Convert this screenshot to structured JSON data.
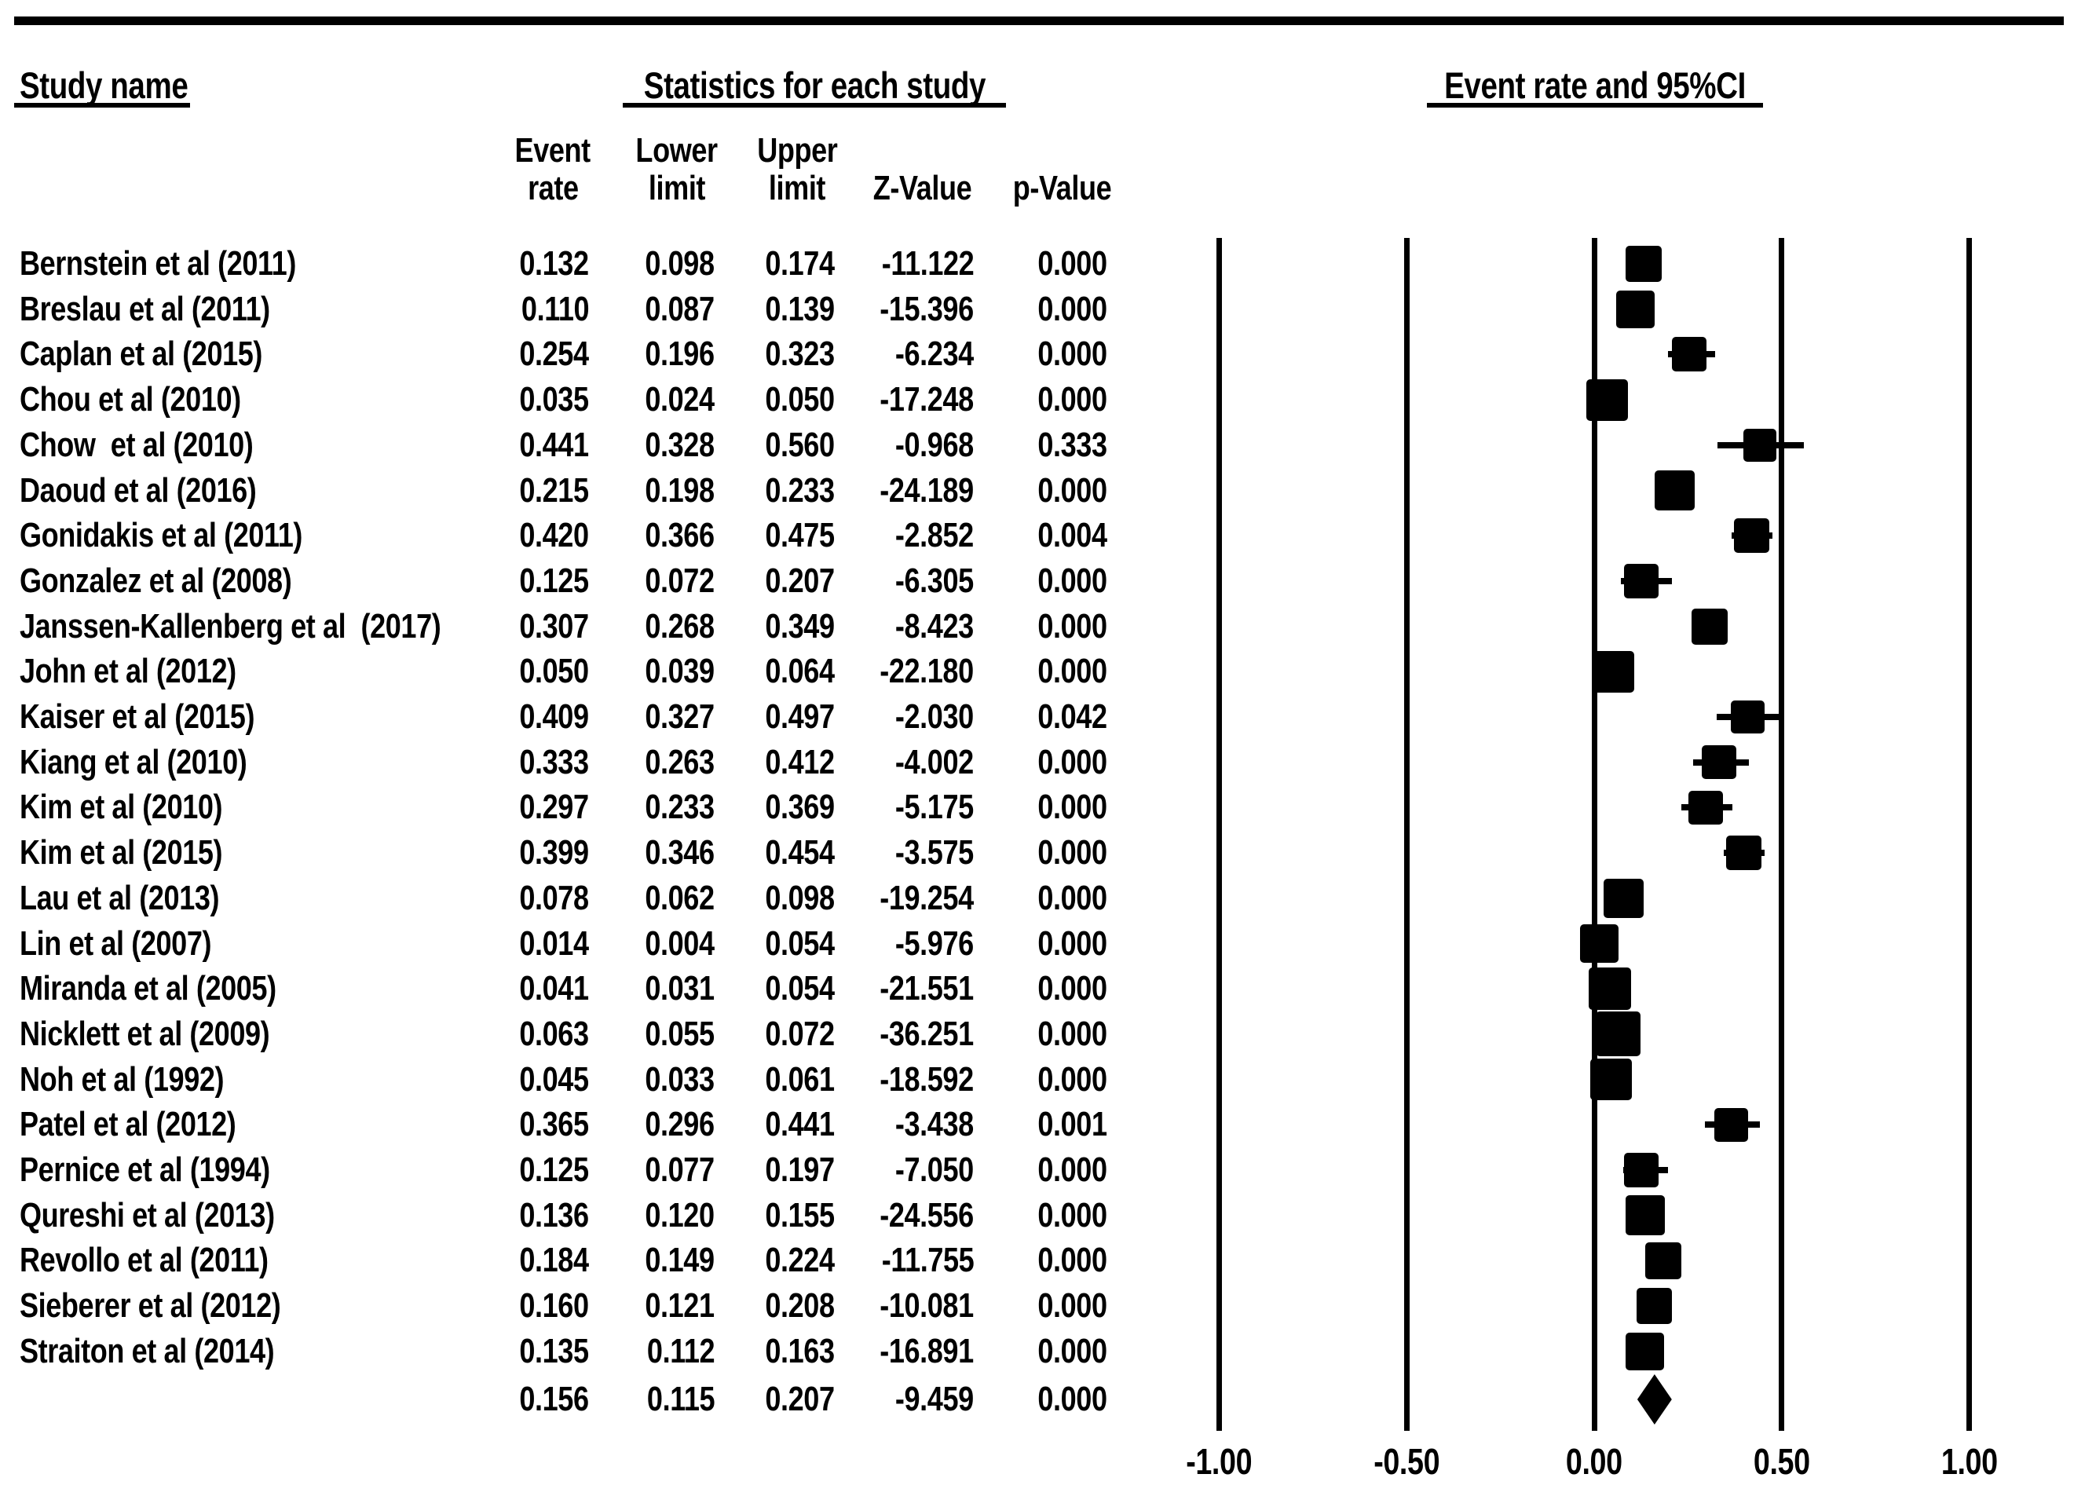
{
  "page": {
    "background": "#ffffff",
    "ink": "#000000"
  },
  "header": {
    "study_col_title": "Study name",
    "stats_title": "Statistics for each study",
    "plot_title": "Event rate and 95%CI",
    "stat_columns": [
      {
        "line1": "Event",
        "line2": "rate"
      },
      {
        "line1": "Lower",
        "line2": "limit"
      },
      {
        "line1": "Upper",
        "line2": "limit"
      },
      {
        "line1": "",
        "line2": "Z-Value"
      },
      {
        "line1": "",
        "line2": "p-Value"
      }
    ]
  },
  "chart_data": {
    "type": "forest",
    "title": "Event rate and 95%CI",
    "columns": [
      "Event rate",
      "Lower limit",
      "Upper limit",
      "Z-Value",
      "p-Value"
    ],
    "x_axis": {
      "tick_labels": [
        "-1.00",
        "-0.50",
        "0.00",
        "0.50",
        "1.00"
      ],
      "tick_values": [
        -1.0,
        -0.5,
        0.0,
        0.5,
        1.0
      ],
      "xlim": [
        -1.0,
        1.0
      ],
      "grid": "vertical-lines"
    },
    "marker": "filled-square",
    "summary_marker": "filled-diamond",
    "studies": [
      {
        "name": "Bernstein et al (2011)",
        "event_rate": "0.132",
        "lower": "0.098",
        "upper": "0.174",
        "z": "-11.122",
        "p": "0.000"
      },
      {
        "name": "Breslau et al (2011)",
        "event_rate": "0.110",
        "lower": "0.087",
        "upper": "0.139",
        "z": "-15.396",
        "p": "0.000"
      },
      {
        "name": "Caplan et al (2015)",
        "event_rate": "0.254",
        "lower": "0.196",
        "upper": "0.323",
        "z": "-6.234",
        "p": "0.000"
      },
      {
        "name": "Chou et al (2010)",
        "event_rate": "0.035",
        "lower": "0.024",
        "upper": "0.050",
        "z": "-17.248",
        "p": "0.000"
      },
      {
        "name": "Chow  et al (2010)",
        "event_rate": "0.441",
        "lower": "0.328",
        "upper": "0.560",
        "z": "-0.968",
        "p": "0.333"
      },
      {
        "name": "Daoud et al (2016)",
        "event_rate": "0.215",
        "lower": "0.198",
        "upper": "0.233",
        "z": "-24.189",
        "p": "0.000"
      },
      {
        "name": "Gonidakis et al (2011)",
        "event_rate": "0.420",
        "lower": "0.366",
        "upper": "0.475",
        "z": "-2.852",
        "p": "0.004"
      },
      {
        "name": "Gonzalez et al (2008)",
        "event_rate": "0.125",
        "lower": "0.072",
        "upper": "0.207",
        "z": "-6.305",
        "p": "0.000"
      },
      {
        "name": "Janssen-Kallenberg et al  (2017)",
        "event_rate": "0.307",
        "lower": "0.268",
        "upper": "0.349",
        "z": "-8.423",
        "p": "0.000"
      },
      {
        "name": "John et al (2012)",
        "event_rate": "0.050",
        "lower": "0.039",
        "upper": "0.064",
        "z": "-22.180",
        "p": "0.000"
      },
      {
        "name": "Kaiser et al (2015)",
        "event_rate": "0.409",
        "lower": "0.327",
        "upper": "0.497",
        "z": "-2.030",
        "p": "0.042"
      },
      {
        "name": "Kiang et al (2010)",
        "event_rate": "0.333",
        "lower": "0.263",
        "upper": "0.412",
        "z": "-4.002",
        "p": "0.000"
      },
      {
        "name": "Kim et al (2010)",
        "event_rate": "0.297",
        "lower": "0.233",
        "upper": "0.369",
        "z": "-5.175",
        "p": "0.000"
      },
      {
        "name": "Kim et al (2015)",
        "event_rate": "0.399",
        "lower": "0.346",
        "upper": "0.454",
        "z": "-3.575",
        "p": "0.000"
      },
      {
        "name": "Lau et al (2013)",
        "event_rate": "0.078",
        "lower": "0.062",
        "upper": "0.098",
        "z": "-19.254",
        "p": "0.000"
      },
      {
        "name": "Lin et al (2007)",
        "event_rate": "0.014",
        "lower": "0.004",
        "upper": "0.054",
        "z": "-5.976",
        "p": "0.000"
      },
      {
        "name": "Miranda et al (2005)",
        "event_rate": "0.041",
        "lower": "0.031",
        "upper": "0.054",
        "z": "-21.551",
        "p": "0.000"
      },
      {
        "name": "Nicklett et al (2009)",
        "event_rate": "0.063",
        "lower": "0.055",
        "upper": "0.072",
        "z": "-36.251",
        "p": "0.000"
      },
      {
        "name": "Noh et al (1992)",
        "event_rate": "0.045",
        "lower": "0.033",
        "upper": "0.061",
        "z": "-18.592",
        "p": "0.000"
      },
      {
        "name": "Patel et al (2012)",
        "event_rate": "0.365",
        "lower": "0.296",
        "upper": "0.441",
        "z": "-3.438",
        "p": "0.001"
      },
      {
        "name": "Pernice et al (1994)",
        "event_rate": "0.125",
        "lower": "0.077",
        "upper": "0.197",
        "z": "-7.050",
        "p": "0.000"
      },
      {
        "name": "Qureshi et al (2013)",
        "event_rate": "0.136",
        "lower": "0.120",
        "upper": "0.155",
        "z": "-24.556",
        "p": "0.000"
      },
      {
        "name": "Revollo et al (2011)",
        "event_rate": "0.184",
        "lower": "0.149",
        "upper": "0.224",
        "z": "-11.755",
        "p": "0.000"
      },
      {
        "name": "Sieberer et al (2012)",
        "event_rate": "0.160",
        "lower": "0.121",
        "upper": "0.208",
        "z": "-10.081",
        "p": "0.000"
      },
      {
        "name": "Straiton et al (2014)",
        "event_rate": "0.135",
        "lower": "0.112",
        "upper": "0.163",
        "z": "-16.891",
        "p": "0.000"
      }
    ],
    "summary": {
      "name": "",
      "event_rate": "0.156",
      "lower": "0.115",
      "upper": "0.207",
      "z": "-9.459",
      "p": "0.000"
    }
  }
}
